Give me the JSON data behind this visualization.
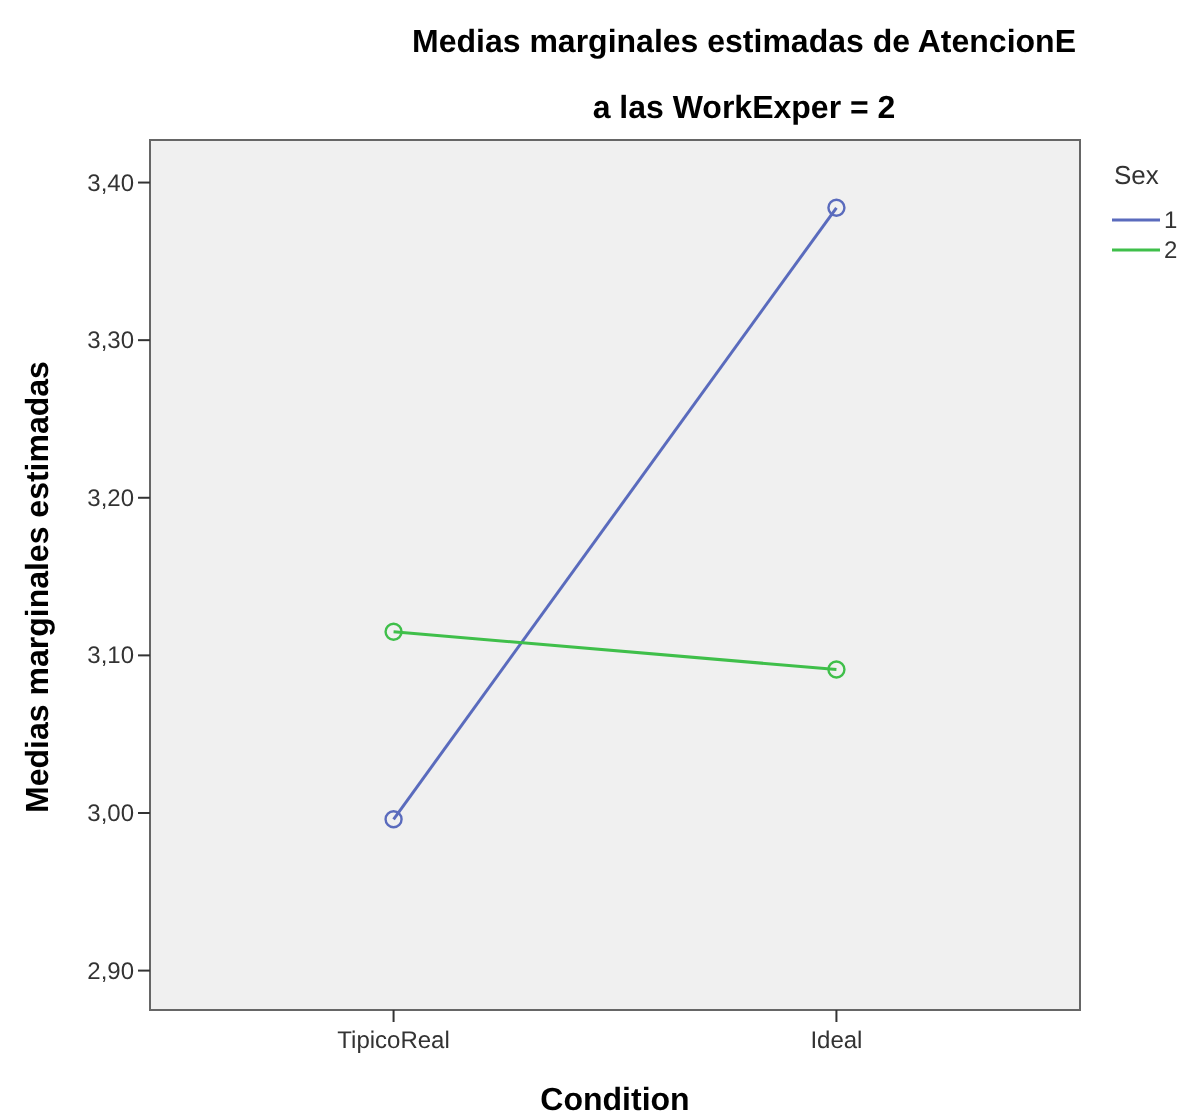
{
  "chart_data": {
    "type": "line",
    "title": "Medias marginales estimadas de AtencionE",
    "subtitle": "a las WorkExper = 2",
    "xlabel": "Condition",
    "ylabel": "Medias marginales estimadas",
    "legend_title": "Sex",
    "categories": [
      "TipicoReal",
      "Ideal"
    ],
    "series": [
      {
        "name": "1",
        "color": "#5a6bbd",
        "values": [
          2.996,
          3.384
        ]
      },
      {
        "name": "2",
        "color": "#3fbf4a",
        "values": [
          3.115,
          3.091
        ]
      }
    ],
    "ylim": [
      2.875,
      3.427
    ],
    "yticks": [
      {
        "value": 2.9,
        "label": "2,90"
      },
      {
        "value": 3.0,
        "label": "3,00"
      },
      {
        "value": 3.1,
        "label": "3,10"
      },
      {
        "value": 3.2,
        "label": "3,20"
      },
      {
        "value": 3.3,
        "label": "3,30"
      },
      {
        "value": 3.4,
        "label": "3,40"
      }
    ],
    "grid": false,
    "legend": "right",
    "marker": "circle",
    "line_style": "solid"
  }
}
